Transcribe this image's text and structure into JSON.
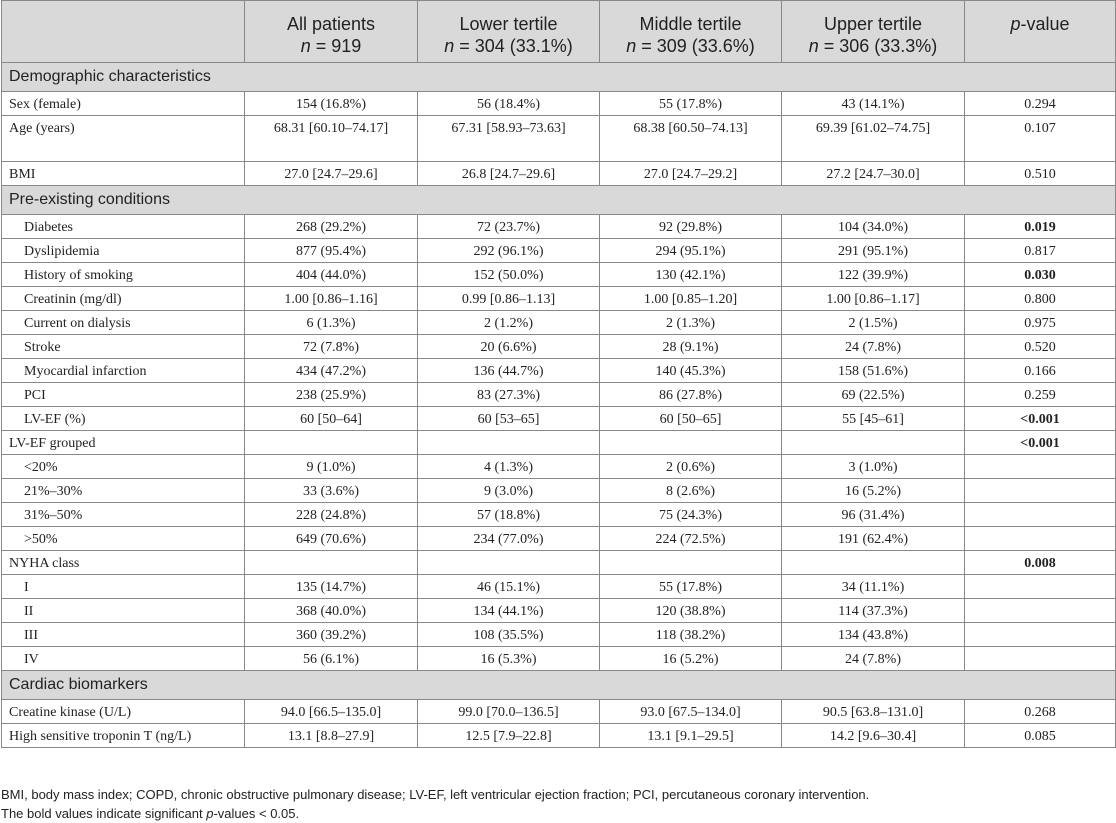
{
  "header": {
    "col0": "",
    "cols": [
      {
        "title": "All patients",
        "n_prefix": "n",
        "n_rest": " = 919"
      },
      {
        "title": "Lower tertile",
        "n_prefix": "n",
        "n_rest": " = 304 (33.1%)"
      },
      {
        "title": "Middle tertile",
        "n_prefix": "n",
        "n_rest": " = 309 (33.6%)"
      },
      {
        "title": "Upper tertile",
        "n_prefix": "n",
        "n_rest": " = 306 (33.3%)"
      }
    ],
    "pvalue_p": "p",
    "pvalue_rest": "-value"
  },
  "sections": [
    {
      "title": "Demographic characteristics",
      "rows": [
        {
          "label": "Sex (female)",
          "indent": false,
          "all": "154 (16.8%)",
          "lower": "56 (18.4%)",
          "middle": "55 (17.8%)",
          "upper": "43 (14.1%)",
          "p": "0.294",
          "bold": false
        },
        {
          "label": "Age (years)",
          "indent": false,
          "all": "68.31 [60.10–74.17]",
          "lower": "67.31 [58.93–73.63]",
          "middle": "68.38 [60.50–74.13]",
          "upper": "69.39 [61.02–74.75]",
          "p": "0.107",
          "bold": false,
          "tall": true
        },
        {
          "label": "BMI",
          "indent": false,
          "all": "27.0 [24.7–29.6]",
          "lower": "26.8 [24.7–29.6]",
          "middle": "27.0 [24.7–29.2]",
          "upper": "27.2 [24.7–30.0]",
          "p": "0.510",
          "bold": false
        }
      ]
    },
    {
      "title": "Pre-existing conditions",
      "rows": [
        {
          "label": "Diabetes",
          "indent": true,
          "all": "268 (29.2%)",
          "lower": "72 (23.7%)",
          "middle": "92 (29.8%)",
          "upper": "104 (34.0%)",
          "p": "0.019",
          "bold": true
        },
        {
          "label": "Dyslipidemia",
          "indent": true,
          "all": "877 (95.4%)",
          "lower": "292 (96.1%)",
          "middle": "294 (95.1%)",
          "upper": "291 (95.1%)",
          "p": "0.817",
          "bold": false
        },
        {
          "label": "History of smoking",
          "indent": true,
          "all": "404 (44.0%)",
          "lower": "152 (50.0%)",
          "middle": "130 (42.1%)",
          "upper": "122 (39.9%)",
          "p": "0.030",
          "bold": true
        },
        {
          "label": "Creatinin (mg/dl)",
          "indent": true,
          "all": "1.00 [0.86–1.16]",
          "lower": "0.99 [0.86–1.13]",
          "middle": "1.00 [0.85–1.20]",
          "upper": "1.00 [0.86–1.17]",
          "p": "0.800",
          "bold": false
        },
        {
          "label": "Current on dialysis",
          "indent": true,
          "all": "6 (1.3%)",
          "lower": "2 (1.2%)",
          "middle": "2 (1.3%)",
          "upper": "2 (1.5%)",
          "p": "0.975",
          "bold": false
        },
        {
          "label": "Stroke",
          "indent": true,
          "all": "72 (7.8%)",
          "lower": "20 (6.6%)",
          "middle": "28 (9.1%)",
          "upper": "24 (7.8%)",
          "p": "0.520",
          "bold": false
        },
        {
          "label": "Myocardial infarction",
          "indent": true,
          "all": "434 (47.2%)",
          "lower": "136 (44.7%)",
          "middle": "140 (45.3%)",
          "upper": "158 (51.6%)",
          "p": "0.166",
          "bold": false
        },
        {
          "label": "PCI",
          "indent": true,
          "all": "238 (25.9%)",
          "lower": "83 (27.3%)",
          "middle": "86 (27.8%)",
          "upper": "69 (22.5%)",
          "p": "0.259",
          "bold": false
        },
        {
          "label": "LV-EF (%)",
          "indent": true,
          "all": "60 [50–64]",
          "lower": "60 [53–65]",
          "middle": "60 [50–65]",
          "upper": "55 [45–61]",
          "p": "<0.001",
          "bold": true
        },
        {
          "label": "LV-EF grouped",
          "indent": false,
          "all": "",
          "lower": "",
          "middle": "",
          "upper": "",
          "p": "<0.001",
          "bold": true
        },
        {
          "label": "<20%",
          "indent": true,
          "all": "9 (1.0%)",
          "lower": "4 (1.3%)",
          "middle": "2 (0.6%)",
          "upper": "3 (1.0%)",
          "p": "",
          "bold": false
        },
        {
          "label": "21%–30%",
          "indent": true,
          "all": "33 (3.6%)",
          "lower": "9 (3.0%)",
          "middle": "8 (2.6%)",
          "upper": "16 (5.2%)",
          "p": "",
          "bold": false
        },
        {
          "label": "31%–50%",
          "indent": true,
          "all": "228 (24.8%)",
          "lower": "57 (18.8%)",
          "middle": "75 (24.3%)",
          "upper": "96 (31.4%)",
          "p": "",
          "bold": false
        },
        {
          "label": ">50%",
          "indent": true,
          "all": "649 (70.6%)",
          "lower": "234 (77.0%)",
          "middle": "224 (72.5%)",
          "upper": "191 (62.4%)",
          "p": "",
          "bold": false
        },
        {
          "label": "NYHA class",
          "indent": false,
          "all": "",
          "lower": "",
          "middle": "",
          "upper": "",
          "p": "0.008",
          "bold": true
        },
        {
          "label": "I",
          "indent": true,
          "all": "135 (14.7%)",
          "lower": "46 (15.1%)",
          "middle": "55 (17.8%)",
          "upper": "34 (11.1%)",
          "p": "",
          "bold": false
        },
        {
          "label": "II",
          "indent": true,
          "all": "368 (40.0%)",
          "lower": "134 (44.1%)",
          "middle": "120 (38.8%)",
          "upper": "114 (37.3%)",
          "p": "",
          "bold": false
        },
        {
          "label": "III",
          "indent": true,
          "all": "360 (39.2%)",
          "lower": "108 (35.5%)",
          "middle": "118 (38.2%)",
          "upper": "134 (43.8%)",
          "p": "",
          "bold": false
        },
        {
          "label": "IV",
          "indent": true,
          "all": "56 (6.1%)",
          "lower": "16 (5.3%)",
          "middle": "16 (5.2%)",
          "upper": "24 (7.8%)",
          "p": "",
          "bold": false
        }
      ]
    },
    {
      "title": "Cardiac biomarkers",
      "rows": [
        {
          "label": "Creatine kinase (U/L)",
          "indent": false,
          "all": "94.0 [66.5–135.0]",
          "lower": "99.0 [70.0–136.5]",
          "middle": "93.0 [67.5–134.0]",
          "upper": "90.5 [63.8–131.0]",
          "p": "0.268",
          "bold": false
        },
        {
          "label": "High sensitive troponin T (ng/L)",
          "indent": false,
          "all": "13.1 [8.8–27.9]",
          "lower": "12.5 [7.9–22.8]",
          "middle": "13.1 [9.1–29.5]",
          "upper": "14.2 [9.6–30.4]",
          "p": "0.085",
          "bold": false
        }
      ]
    }
  ],
  "footnote": {
    "line1": "BMI, body mass index; COPD, chronic obstructive pulmonary disease; LV-EF, left ventricular ejection fraction; PCI, percutaneous coronary intervention.",
    "line2_a": "The bold values indicate significant ",
    "line2_p": "p",
    "line2_b": "-values < 0.05."
  }
}
